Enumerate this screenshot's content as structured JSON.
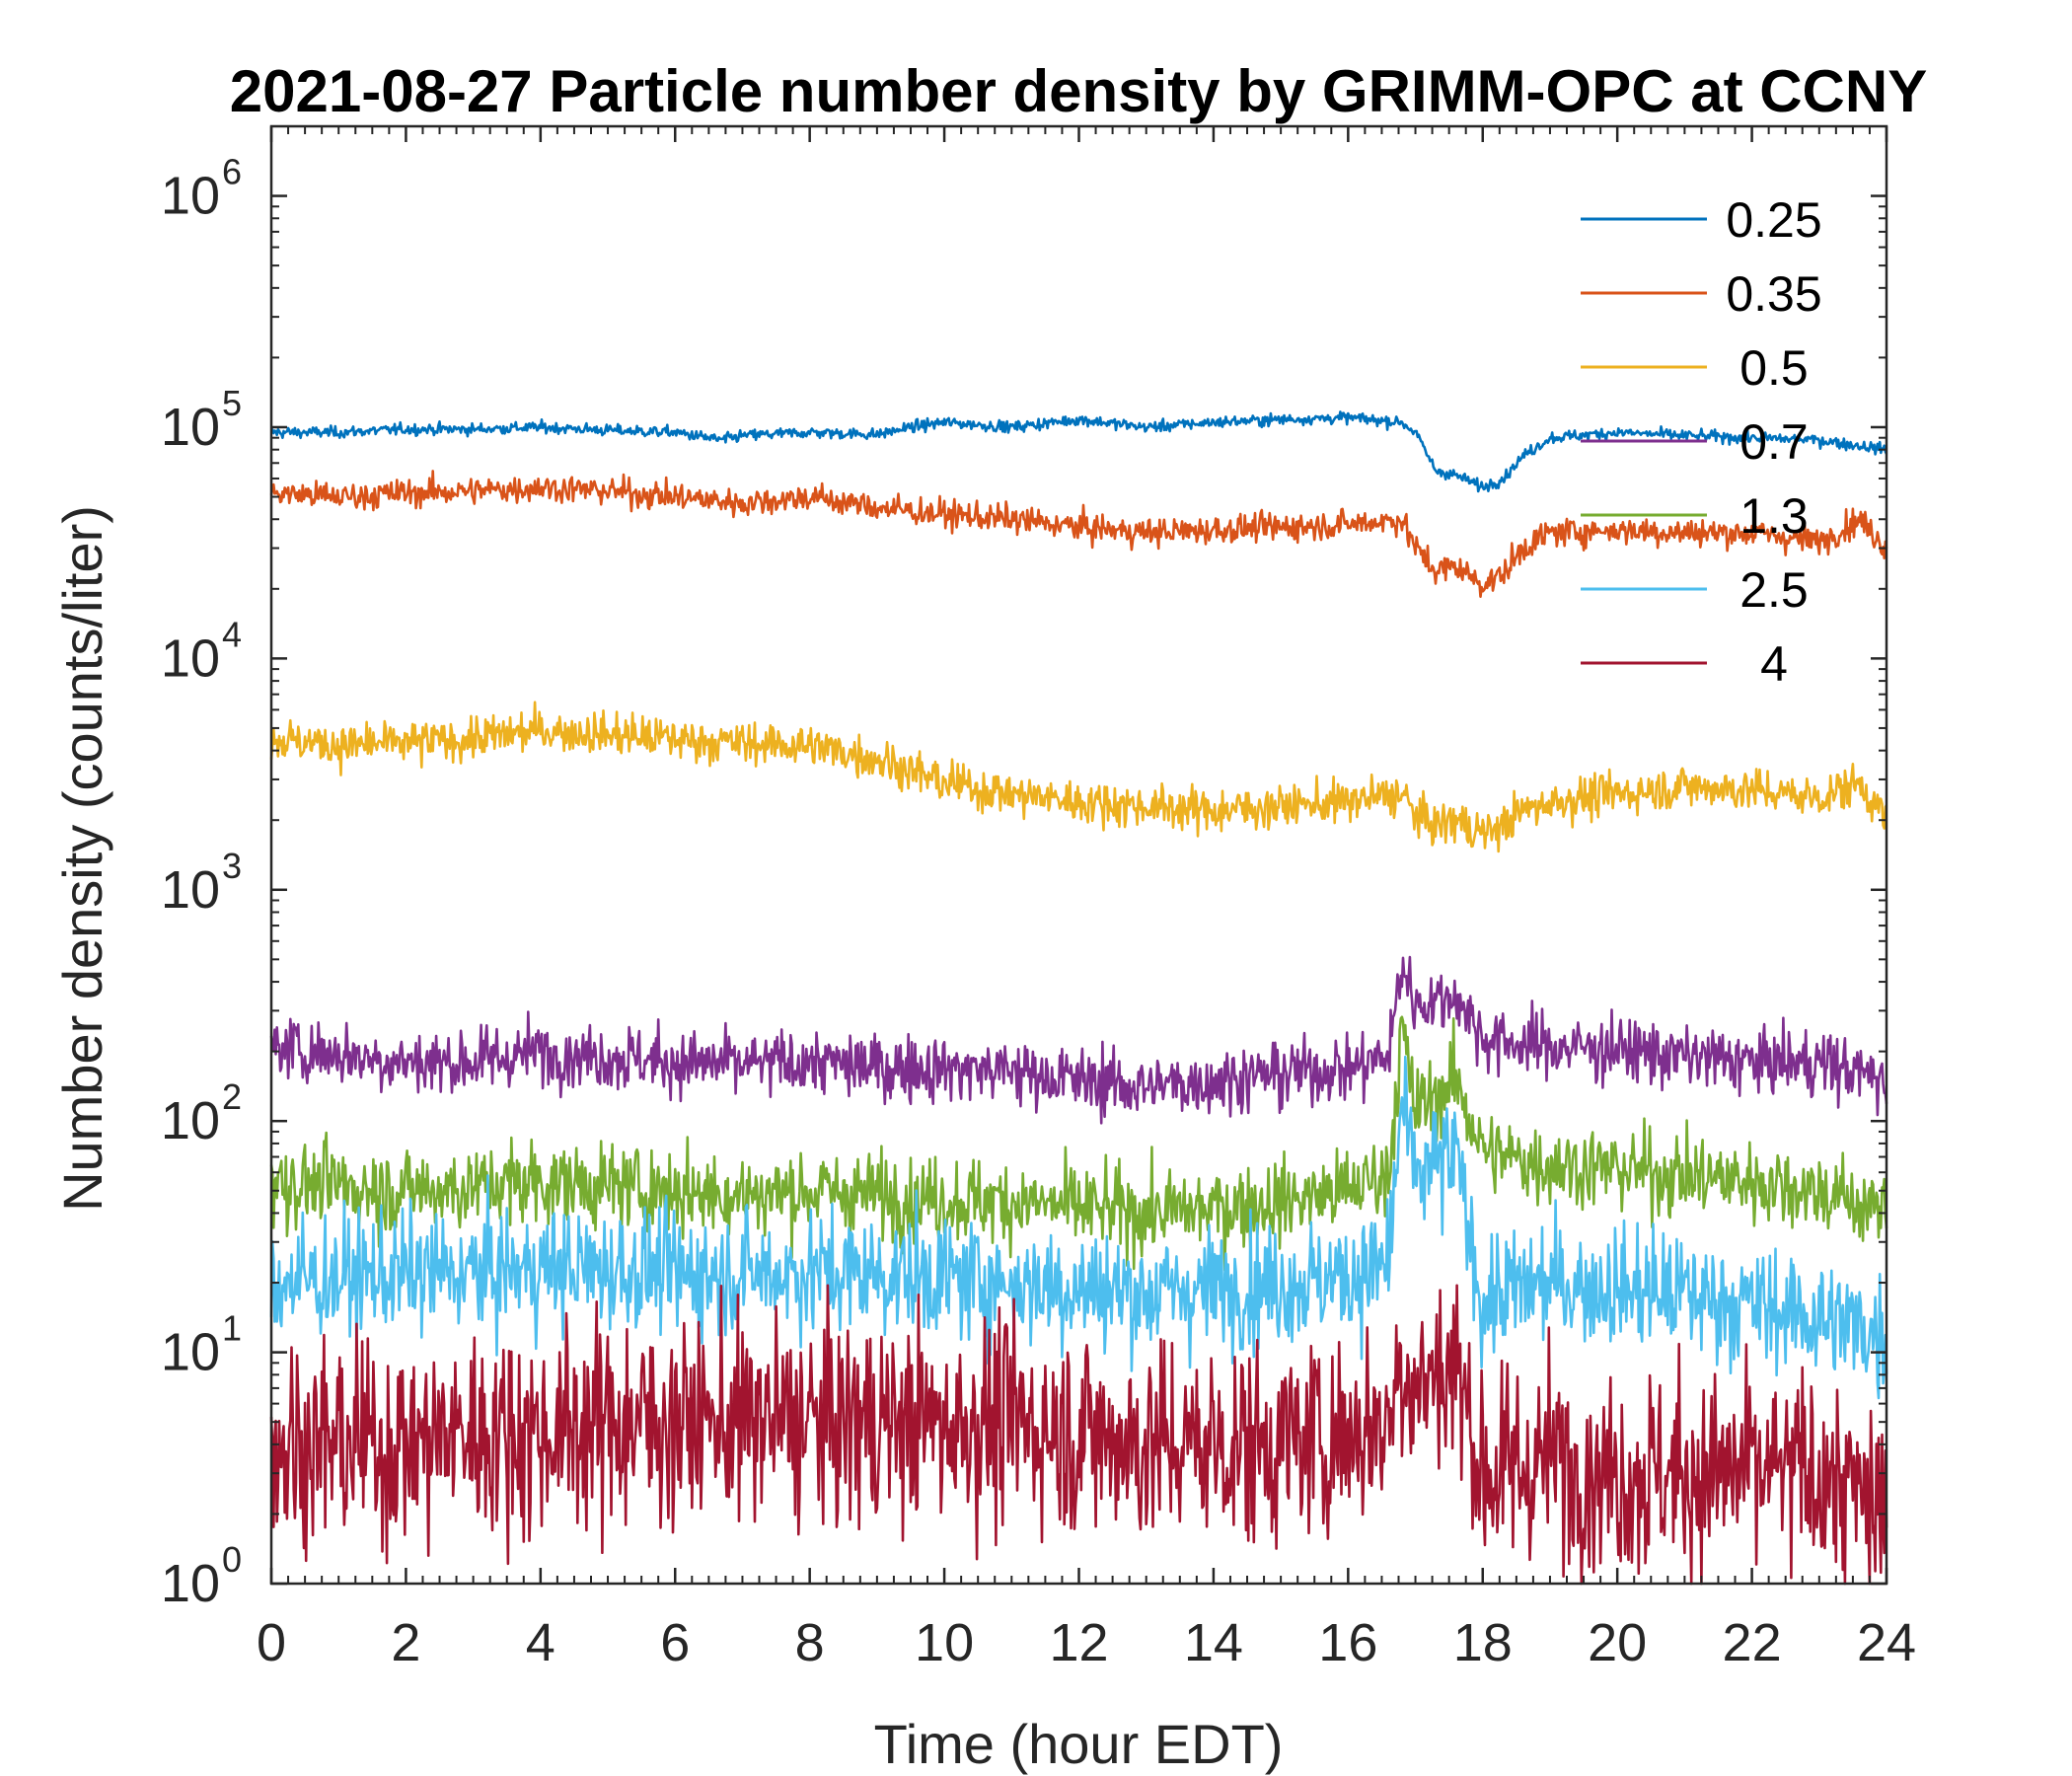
{
  "chart_data": {
    "type": "line",
    "title": "2021-08-27 Particle number density by GRIMM-OPC at CCNY",
    "xlabel": "Time (hour EDT)",
    "ylabel": "Number density (counts/liter)",
    "xlim": [
      0,
      24
    ],
    "ylim": [
      1,
      2000000
    ],
    "yscale": "log",
    "xticks": [
      "0",
      "2",
      "4",
      "6",
      "8",
      "10",
      "12",
      "14",
      "16",
      "18",
      "20",
      "22",
      "24"
    ],
    "yticks": [
      {
        "base": "10",
        "exp": "0"
      },
      {
        "base": "10",
        "exp": "1"
      },
      {
        "base": "10",
        "exp": "2"
      },
      {
        "base": "10",
        "exp": "3"
      },
      {
        "base": "10",
        "exp": "4"
      },
      {
        "base": "10",
        "exp": "5"
      },
      {
        "base": "10",
        "exp": "6"
      }
    ],
    "grid": false,
    "legend_position": "top-right",
    "series": [
      {
        "name": "0.25",
        "color": "#0072BD",
        "x": [
          0,
          1,
          2,
          3,
          4,
          5,
          6,
          6.7,
          7,
          8,
          9,
          9.5,
          10,
          11,
          12,
          13,
          14,
          15,
          16,
          16.8,
          17,
          17.3,
          17.6,
          18,
          18.3,
          18.6,
          19,
          20,
          21,
          22,
          23,
          24
        ],
        "y": [
          95000,
          95000,
          98000,
          98000,
          100000,
          97000,
          95000,
          88000,
          92000,
          95000,
          93000,
          100000,
          105000,
          100000,
          108000,
          100000,
          105000,
          108000,
          110000,
          105000,
          95000,
          65000,
          62000,
          55000,
          60000,
          75000,
          90000,
          95000,
          92000,
          90000,
          88000,
          80000
        ]
      },
      {
        "name": "0.35",
        "color": "#D95319",
        "x": [
          0,
          1,
          2,
          3,
          4,
          5,
          6,
          7,
          8,
          9,
          10,
          11,
          12,
          13,
          14,
          15,
          16,
          16.8,
          17,
          17.3,
          17.6,
          18,
          18.3,
          18.6,
          19,
          20,
          21,
          22,
          23,
          23.6,
          24
        ],
        "y": [
          52000,
          50000,
          52000,
          53000,
          55000,
          53000,
          50000,
          47000,
          50000,
          45000,
          42000,
          40000,
          37000,
          35000,
          36000,
          37000,
          38000,
          40000,
          30000,
          24000,
          25000,
          21000,
          23000,
          30000,
          35000,
          36000,
          35000,
          35000,
          32000,
          40000,
          30000
        ]
      },
      {
        "name": "0.5",
        "color": "#EDB120",
        "x": [
          0,
          1,
          2,
          3,
          4,
          5,
          6,
          7,
          8,
          9,
          10,
          11,
          12,
          13,
          14,
          15,
          16,
          16.8,
          17,
          17.3,
          17.6,
          18,
          18.3,
          18.6,
          19,
          20,
          21,
          22,
          23,
          23.6,
          24
        ],
        "y": [
          4500,
          4200,
          4300,
          4500,
          4900,
          4700,
          4500,
          4300,
          4200,
          3700,
          2900,
          2600,
          2400,
          2300,
          2200,
          2300,
          2400,
          2600,
          2100,
          1900,
          2000,
          1750,
          1900,
          2200,
          2400,
          2600,
          2800,
          2700,
          2500,
          2900,
          2000
        ]
      },
      {
        "name": "0.7",
        "color": "#7E2F8E",
        "x": [
          0,
          1,
          2,
          3,
          4,
          5,
          6,
          7,
          8,
          9,
          10,
          11,
          12,
          13,
          14,
          15,
          16,
          16.6,
          16.8,
          17,
          17.3,
          17.6,
          18,
          18.3,
          19,
          20,
          21,
          22,
          23,
          24
        ],
        "y": [
          210,
          195,
          180,
          180,
          200,
          190,
          180,
          175,
          180,
          170,
          170,
          165,
          150,
          140,
          150,
          160,
          170,
          190,
          480,
          320,
          330,
          350,
          230,
          220,
          210,
          205,
          190,
          180,
          180,
          150
        ]
      },
      {
        "name": "1.3",
        "color": "#77AC30",
        "x": [
          0,
          1,
          2,
          3,
          4,
          5,
          6,
          7,
          8,
          9,
          10,
          11,
          12,
          13,
          14,
          15,
          16,
          16.6,
          16.8,
          17,
          17.3,
          17.6,
          18,
          18.3,
          19,
          20,
          21,
          22,
          23,
          24
        ],
        "y": [
          55,
          52,
          50,
          52,
          55,
          52,
          50,
          48,
          50,
          48,
          46,
          45,
          42,
          40,
          42,
          45,
          50,
          60,
          250,
          110,
          130,
          150,
          75,
          70,
          65,
          62,
          58,
          55,
          50,
          40
        ]
      },
      {
        "name": "2.5",
        "color": "#4DBEEE",
        "x": [
          0,
          1,
          2,
          3,
          4,
          5,
          6,
          7,
          8,
          9,
          10,
          11,
          12,
          13,
          14,
          15,
          16,
          16.6,
          16.8,
          17,
          17.3,
          17.6,
          18,
          18.3,
          19,
          20,
          21,
          22,
          23,
          24
        ],
        "y": [
          20,
          21,
          22,
          22,
          23,
          23,
          22,
          22,
          22,
          22,
          21,
          20,
          19,
          18,
          19,
          20,
          21,
          24,
          120,
          55,
          65,
          70,
          16,
          18,
          20,
          19,
          18,
          16,
          14,
          12
        ]
      },
      {
        "name": "4",
        "color": "#A2142F",
        "x": [
          0,
          1,
          2,
          3,
          4,
          5,
          6,
          7,
          8,
          9,
          10,
          11,
          12,
          13,
          14,
          15,
          16,
          16.6,
          16.8,
          17,
          17.3,
          17.6,
          18,
          18.3,
          19,
          20,
          21,
          22,
          23,
          24
        ],
        "y": [
          4,
          4,
          4,
          4.5,
          4.5,
          5,
          5,
          5,
          5,
          5,
          5,
          5,
          4.5,
          4,
          4,
          4,
          4.5,
          5,
          10,
          7,
          8,
          9,
          3,
          3,
          3.5,
          3,
          3,
          3,
          3,
          2
        ]
      }
    ]
  }
}
